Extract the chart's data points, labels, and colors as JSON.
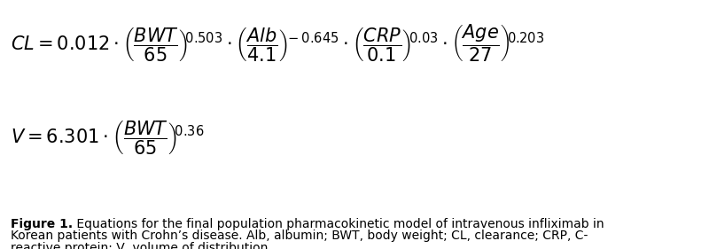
{
  "bg_color": "#ffffff",
  "text_color": "#000000",
  "eq_fontsize": 15,
  "caption_fontsize": 10,
  "fig_width": 8.0,
  "fig_height": 2.81,
  "dpi": 100,
  "caption_bold": "Figure 1.",
  "caption_rest": " Equations for the final population pharmacokinetic model of intravenous infliximab in Korean patients with Crohn’s disease. Alb, albumin; BWT, body weight; CL, clearance; CRP, C-reactive protein; V, volume of distribution."
}
